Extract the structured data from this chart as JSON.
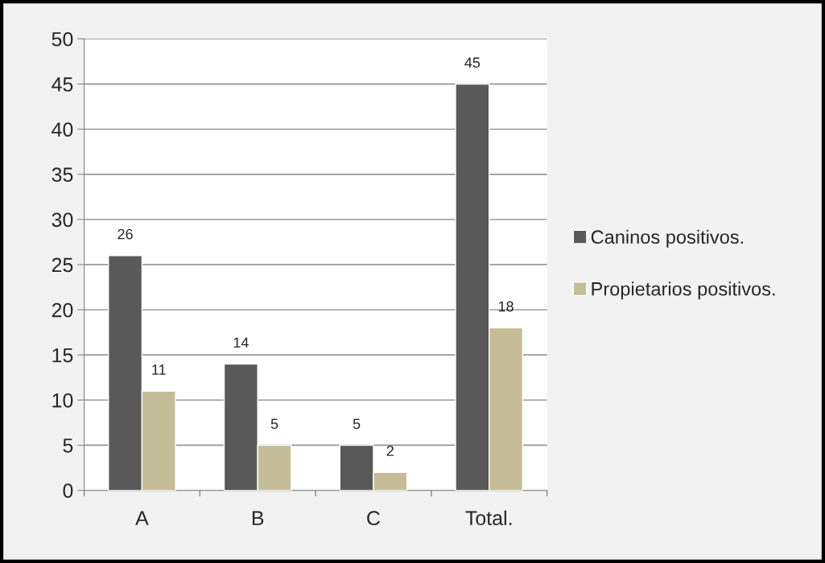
{
  "chart_data": {
    "type": "bar",
    "categories": [
      "A",
      "B",
      "C",
      "Total."
    ],
    "series": [
      {
        "name": "Caninos positivos.",
        "color": "#595959",
        "values": [
          26,
          14,
          5,
          45
        ]
      },
      {
        "name": "Propietarios positivos.",
        "color": "#c4bd97",
        "values": [
          11,
          5,
          2,
          18
        ]
      }
    ],
    "ylim": [
      0,
      50
    ],
    "yticks": [
      0,
      5,
      10,
      15,
      20,
      25,
      30,
      35,
      40,
      45,
      50
    ],
    "grid": "y",
    "legend": "right",
    "data_labels": true
  }
}
